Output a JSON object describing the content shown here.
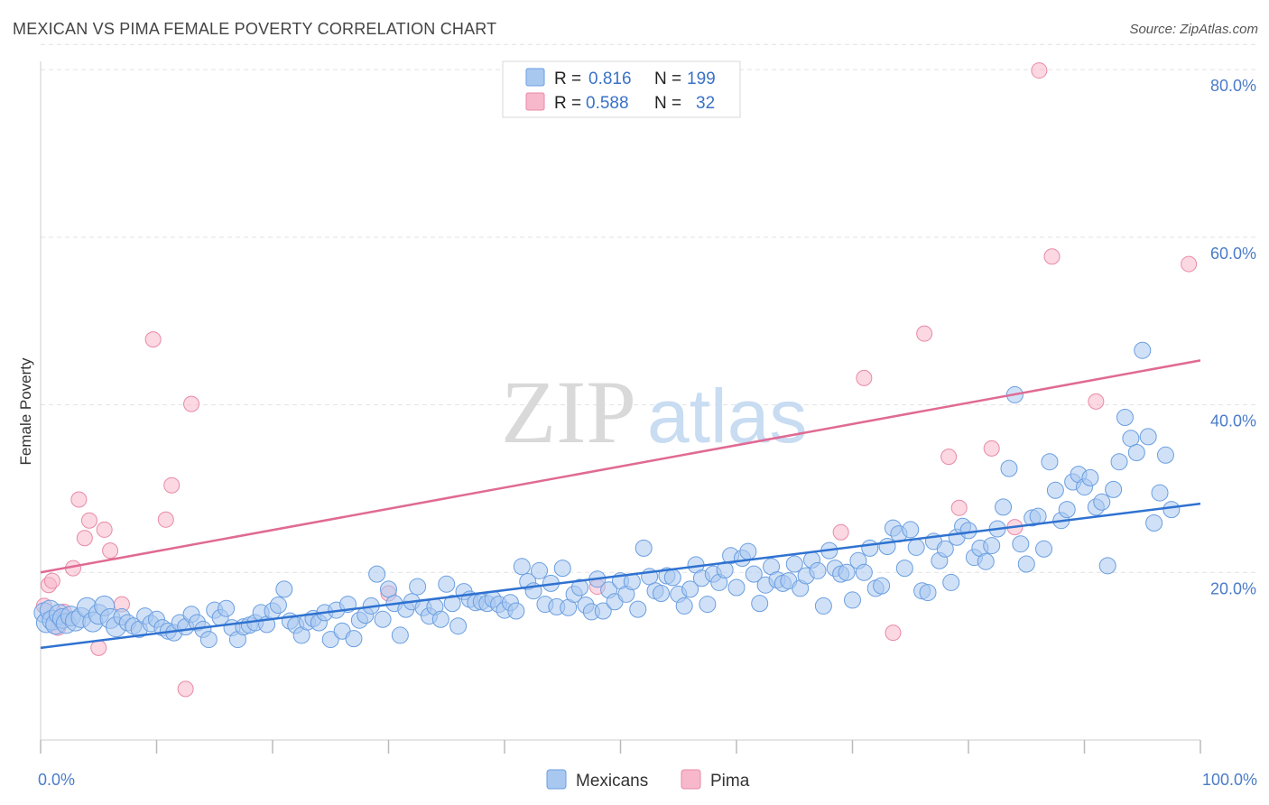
{
  "title": "MEXICAN VS PIMA FEMALE POVERTY CORRELATION CHART",
  "source": "Source: ZipAtlas.com",
  "watermark": {
    "zip": "ZIP",
    "atlas": "atlas"
  },
  "colors": {
    "mexicans_fill": "#a9c8f0",
    "mexicans_stroke": "#6a9ee0",
    "mexicans_line": "#2f72d0",
    "pima_fill": "#f7b8cb",
    "pima_stroke": "#e98aa8",
    "pima_line": "#e06a93",
    "tick_text": "#4a7cc9",
    "grid": "#e2e2e2"
  },
  "legend": {
    "rows": [
      {
        "r_label": "R =",
        "r_value": "0.816",
        "n_label": "N =",
        "n_value": "199"
      },
      {
        "r_label": "R =",
        "r_value": "0.588",
        "n_label": "N =",
        "n_value": "32"
      }
    ]
  },
  "chart_data": {
    "type": "scatter",
    "xlabel": "",
    "ylabel": "Female Poverty",
    "xlim": [
      0,
      100
    ],
    "ylim": [
      0,
      84
    ],
    "x_tick_labels": [
      "0.0%",
      "100.0%"
    ],
    "y_ticks": [
      20,
      40,
      60,
      80
    ],
    "y_tick_labels": [
      "20.0%",
      "40.0%",
      "60.0%",
      "80.0%"
    ],
    "grid": true,
    "legend_position": "top-center",
    "series": [
      {
        "name": "Mexicans",
        "trend": {
          "x": [
            0,
            100
          ],
          "y": [
            11.0,
            28.2
          ]
        },
        "points": [
          [
            0.3,
            15.2
          ],
          [
            0.5,
            14.0
          ],
          [
            0.8,
            15.5
          ],
          [
            1.0,
            14.3
          ],
          [
            1.3,
            13.8
          ],
          [
            1.6,
            15.0
          ],
          [
            1.9,
            14.5
          ],
          [
            2.2,
            13.9
          ],
          [
            2.6,
            14.8
          ],
          [
            3.0,
            14.2
          ],
          [
            3.5,
            14.6
          ],
          [
            4.0,
            15.8
          ],
          [
            4.5,
            14.1
          ],
          [
            5.0,
            15.0
          ],
          [
            5.5,
            16.0
          ],
          [
            6.0,
            14.5
          ],
          [
            6.5,
            13.5
          ],
          [
            7.0,
            14.7
          ],
          [
            7.5,
            14.0
          ],
          [
            8.0,
            13.6
          ],
          [
            8.5,
            13.2
          ],
          [
            9.0,
            14.8
          ],
          [
            9.5,
            13.9
          ],
          [
            10.0,
            14.4
          ],
          [
            10.5,
            13.4
          ],
          [
            11.0,
            13.0
          ],
          [
            11.5,
            12.8
          ],
          [
            12.0,
            14.0
          ],
          [
            12.5,
            13.5
          ],
          [
            13.0,
            15.0
          ],
          [
            13.5,
            14.0
          ],
          [
            14.0,
            13.2
          ],
          [
            14.5,
            12.0
          ],
          [
            15.0,
            15.5
          ],
          [
            15.5,
            14.6
          ],
          [
            16.0,
            15.7
          ],
          [
            16.5,
            13.4
          ],
          [
            17.0,
            12.0
          ],
          [
            17.5,
            13.5
          ],
          [
            18.0,
            13.7
          ],
          [
            18.5,
            14.0
          ],
          [
            19.0,
            15.2
          ],
          [
            19.5,
            13.8
          ],
          [
            20.0,
            15.4
          ],
          [
            20.5,
            16.1
          ],
          [
            21.0,
            18.0
          ],
          [
            21.5,
            14.2
          ],
          [
            22.0,
            13.7
          ],
          [
            22.5,
            12.5
          ],
          [
            23.0,
            14.1
          ],
          [
            23.5,
            14.5
          ],
          [
            24.0,
            14.0
          ],
          [
            24.5,
            15.2
          ],
          [
            25.0,
            12.0
          ],
          [
            25.5,
            15.5
          ],
          [
            26.0,
            13.0
          ],
          [
            26.5,
            16.2
          ],
          [
            27.0,
            12.1
          ],
          [
            27.5,
            14.3
          ],
          [
            28.0,
            14.9
          ],
          [
            28.5,
            16.0
          ],
          [
            29.0,
            19.8
          ],
          [
            29.5,
            14.4
          ],
          [
            30.0,
            18.0
          ],
          [
            30.5,
            16.3
          ],
          [
            31.0,
            12.5
          ],
          [
            31.5,
            15.6
          ],
          [
            32.0,
            16.5
          ],
          [
            32.5,
            18.3
          ],
          [
            33.0,
            15.8
          ],
          [
            33.5,
            14.8
          ],
          [
            34.0,
            15.9
          ],
          [
            34.5,
            14.4
          ],
          [
            35.0,
            18.6
          ],
          [
            35.5,
            16.3
          ],
          [
            36.0,
            13.6
          ],
          [
            36.5,
            17.7
          ],
          [
            37.0,
            16.8
          ],
          [
            37.5,
            16.4
          ],
          [
            38.0,
            16.5
          ],
          [
            38.5,
            16.3
          ],
          [
            39.0,
            16.8
          ],
          [
            39.5,
            16.2
          ],
          [
            40.0,
            15.5
          ],
          [
            40.5,
            16.4
          ],
          [
            41.0,
            15.4
          ],
          [
            41.5,
            20.7
          ],
          [
            42.0,
            18.9
          ],
          [
            42.5,
            17.8
          ],
          [
            43.0,
            20.2
          ],
          [
            43.5,
            16.2
          ],
          [
            44.0,
            18.7
          ],
          [
            44.5,
            15.9
          ],
          [
            45.0,
            20.5
          ],
          [
            45.5,
            15.8
          ],
          [
            46.0,
            17.4
          ],
          [
            46.5,
            18.2
          ],
          [
            47.0,
            16.1
          ],
          [
            47.5,
            15.3
          ],
          [
            48.0,
            19.2
          ],
          [
            48.5,
            15.4
          ],
          [
            49.0,
            17.9
          ],
          [
            49.5,
            16.5
          ],
          [
            50.0,
            19.0
          ],
          [
            50.5,
            17.4
          ],
          [
            51.0,
            18.9
          ],
          [
            51.5,
            15.6
          ],
          [
            52.0,
            22.9
          ],
          [
            52.5,
            19.5
          ],
          [
            53.0,
            17.8
          ],
          [
            53.5,
            17.5
          ],
          [
            54.0,
            19.6
          ],
          [
            54.5,
            19.4
          ],
          [
            55.0,
            17.4
          ],
          [
            55.5,
            16.0
          ],
          [
            56.0,
            18.0
          ],
          [
            56.5,
            20.9
          ],
          [
            57.0,
            19.3
          ],
          [
            57.5,
            16.2
          ],
          [
            58.0,
            19.8
          ],
          [
            58.5,
            18.8
          ],
          [
            59.0,
            20.3
          ],
          [
            59.5,
            22.0
          ],
          [
            60.0,
            18.2
          ],
          [
            60.5,
            21.7
          ],
          [
            61.0,
            22.5
          ],
          [
            61.5,
            19.8
          ],
          [
            62.0,
            16.3
          ],
          [
            62.5,
            18.5
          ],
          [
            63.0,
            20.7
          ],
          [
            63.5,
            19.1
          ],
          [
            64.0,
            18.7
          ],
          [
            64.5,
            19.0
          ],
          [
            65.0,
            21.0
          ],
          [
            65.5,
            18.1
          ],
          [
            66.0,
            19.6
          ],
          [
            66.5,
            21.5
          ],
          [
            67.0,
            20.2
          ],
          [
            67.5,
            16.0
          ],
          [
            68.0,
            22.6
          ],
          [
            68.5,
            20.5
          ],
          [
            69.0,
            19.8
          ],
          [
            69.5,
            20.0
          ],
          [
            70.0,
            16.7
          ],
          [
            70.5,
            21.4
          ],
          [
            71.0,
            20.0
          ],
          [
            71.5,
            22.9
          ],
          [
            72.0,
            18.1
          ],
          [
            72.5,
            18.4
          ],
          [
            73.0,
            23.1
          ],
          [
            73.5,
            25.3
          ],
          [
            74.0,
            24.6
          ],
          [
            74.5,
            20.5
          ],
          [
            75.0,
            25.1
          ],
          [
            75.5,
            23.0
          ],
          [
            76.0,
            17.8
          ],
          [
            76.5,
            17.6
          ],
          [
            77.0,
            23.7
          ],
          [
            77.5,
            21.4
          ],
          [
            78.0,
            22.8
          ],
          [
            78.5,
            18.8
          ],
          [
            79.0,
            24.2
          ],
          [
            79.5,
            25.5
          ],
          [
            80.0,
            25.0
          ],
          [
            80.5,
            21.8
          ],
          [
            81.0,
            22.9
          ],
          [
            81.5,
            21.3
          ],
          [
            82.0,
            23.2
          ],
          [
            82.5,
            25.2
          ],
          [
            83.0,
            27.8
          ],
          [
            83.5,
            32.4
          ],
          [
            84.0,
            41.2
          ],
          [
            84.5,
            23.4
          ],
          [
            85.0,
            21.0
          ],
          [
            85.5,
            26.5
          ],
          [
            86.0,
            26.7
          ],
          [
            86.5,
            22.8
          ],
          [
            87.0,
            33.2
          ],
          [
            87.5,
            29.8
          ],
          [
            88.0,
            26.2
          ],
          [
            88.5,
            27.5
          ],
          [
            89.0,
            30.8
          ],
          [
            89.5,
            31.7
          ],
          [
            90.0,
            30.2
          ],
          [
            90.5,
            31.3
          ],
          [
            91.0,
            27.8
          ],
          [
            91.5,
            28.4
          ],
          [
            92.0,
            20.8
          ],
          [
            92.5,
            29.9
          ],
          [
            93.0,
            33.2
          ],
          [
            93.5,
            38.5
          ],
          [
            94.0,
            36.0
          ],
          [
            94.5,
            34.3
          ],
          [
            95.0,
            46.5
          ],
          [
            95.5,
            36.2
          ],
          [
            96.0,
            25.9
          ],
          [
            96.5,
            29.5
          ],
          [
            97.0,
            34.0
          ],
          [
            97.5,
            27.5
          ]
        ]
      },
      {
        "name": "Pima",
        "trend": {
          "x": [
            0,
            100
          ],
          "y": [
            20.0,
            45.3
          ]
        },
        "points": [
          [
            0.3,
            16.0
          ],
          [
            0.7,
            18.5
          ],
          [
            1.0,
            19.0
          ],
          [
            1.5,
            13.4
          ],
          [
            2.0,
            15.3
          ],
          [
            2.8,
            20.5
          ],
          [
            3.3,
            28.7
          ],
          [
            3.8,
            24.1
          ],
          [
            4.2,
            26.2
          ],
          [
            5.0,
            11.0
          ],
          [
            5.5,
            25.1
          ],
          [
            6.0,
            22.6
          ],
          [
            7.0,
            16.2
          ],
          [
            9.7,
            47.8
          ],
          [
            10.8,
            26.3
          ],
          [
            11.3,
            30.4
          ],
          [
            12.5,
            6.1
          ],
          [
            13.0,
            40.1
          ],
          [
            30.0,
            17.5
          ],
          [
            48.0,
            18.3
          ],
          [
            69.0,
            24.8
          ],
          [
            71.0,
            43.2
          ],
          [
            73.5,
            12.8
          ],
          [
            76.2,
            48.5
          ],
          [
            78.3,
            33.8
          ],
          [
            79.2,
            27.7
          ],
          [
            82.0,
            34.8
          ],
          [
            84.0,
            25.4
          ],
          [
            86.1,
            79.9
          ],
          [
            87.2,
            57.7
          ],
          [
            91.0,
            40.4
          ],
          [
            99.0,
            56.8
          ]
        ]
      }
    ]
  },
  "bottom_legend": {
    "items": [
      "Mexicans",
      "Pima"
    ]
  }
}
